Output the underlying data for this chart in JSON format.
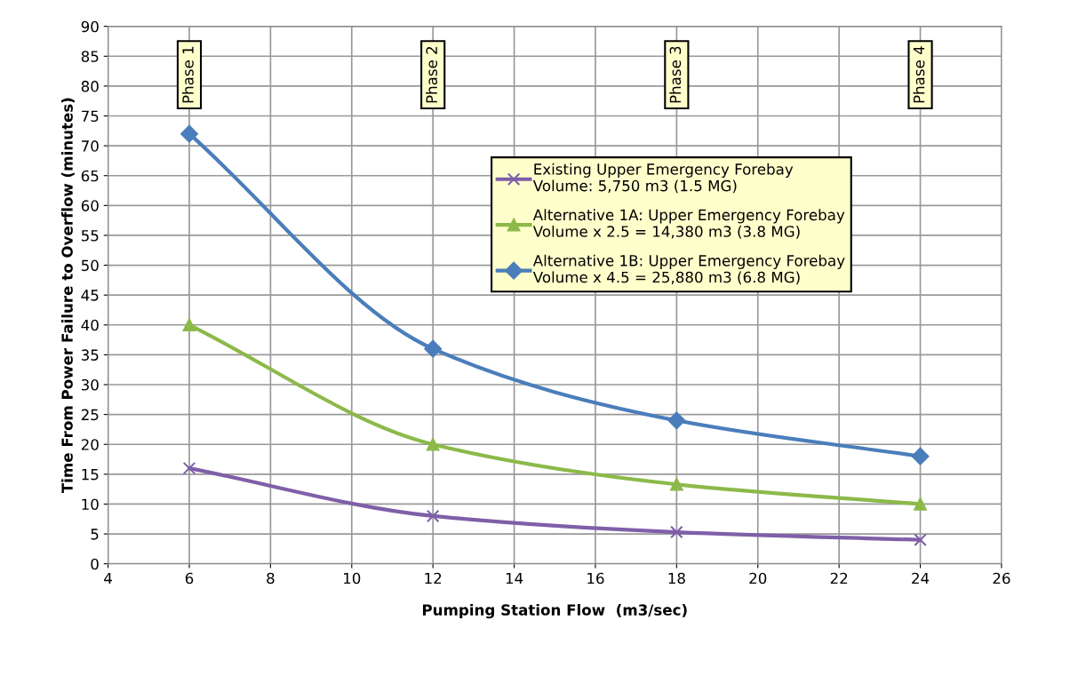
{
  "chart_data": {
    "type": "line",
    "xlabel": "Pumping Station Flow  (m3/sec)",
    "ylabel": "Time From Power Failure to Overflow (minutes)",
    "x": [
      6,
      12,
      18,
      24
    ],
    "series": [
      {
        "name": "Existing Upper Emergency Forebay\nVolume: 5,750 m3 (1.5 MG)",
        "color": "#7f5fa8",
        "marker": "cross",
        "values": [
          16,
          8,
          5.3,
          4
        ]
      },
      {
        "name": "Alternative 1A: Upper Emergency Forebay\nVolume x 2.5 = 14,380 m3 (3.8 MG)",
        "color": "#8cb94a",
        "marker": "triangle",
        "values": [
          40,
          20,
          13.3,
          10
        ]
      },
      {
        "name": "Alternative 1B: Upper Emergency Forebay\nVolume x 4.5 = 25,880 m3 (6.8 MG)",
        "color": "#4a7ebb",
        "marker": "diamond",
        "values": [
          72,
          36,
          24,
          18
        ]
      }
    ],
    "xlim": [
      4,
      26
    ],
    "xticks": [
      4,
      6,
      8,
      10,
      12,
      14,
      16,
      18,
      20,
      22,
      24,
      26
    ],
    "ylim": [
      0,
      90
    ],
    "yticks": [
      0,
      5,
      10,
      15,
      20,
      25,
      30,
      35,
      40,
      45,
      50,
      55,
      60,
      65,
      70,
      75,
      80,
      85,
      90
    ],
    "grid": true,
    "legend": "top right",
    "line_style": "solid",
    "annotations": [
      "Phase 1",
      "Phase 2",
      "Phase 3",
      "Phase 4"
    ]
  }
}
